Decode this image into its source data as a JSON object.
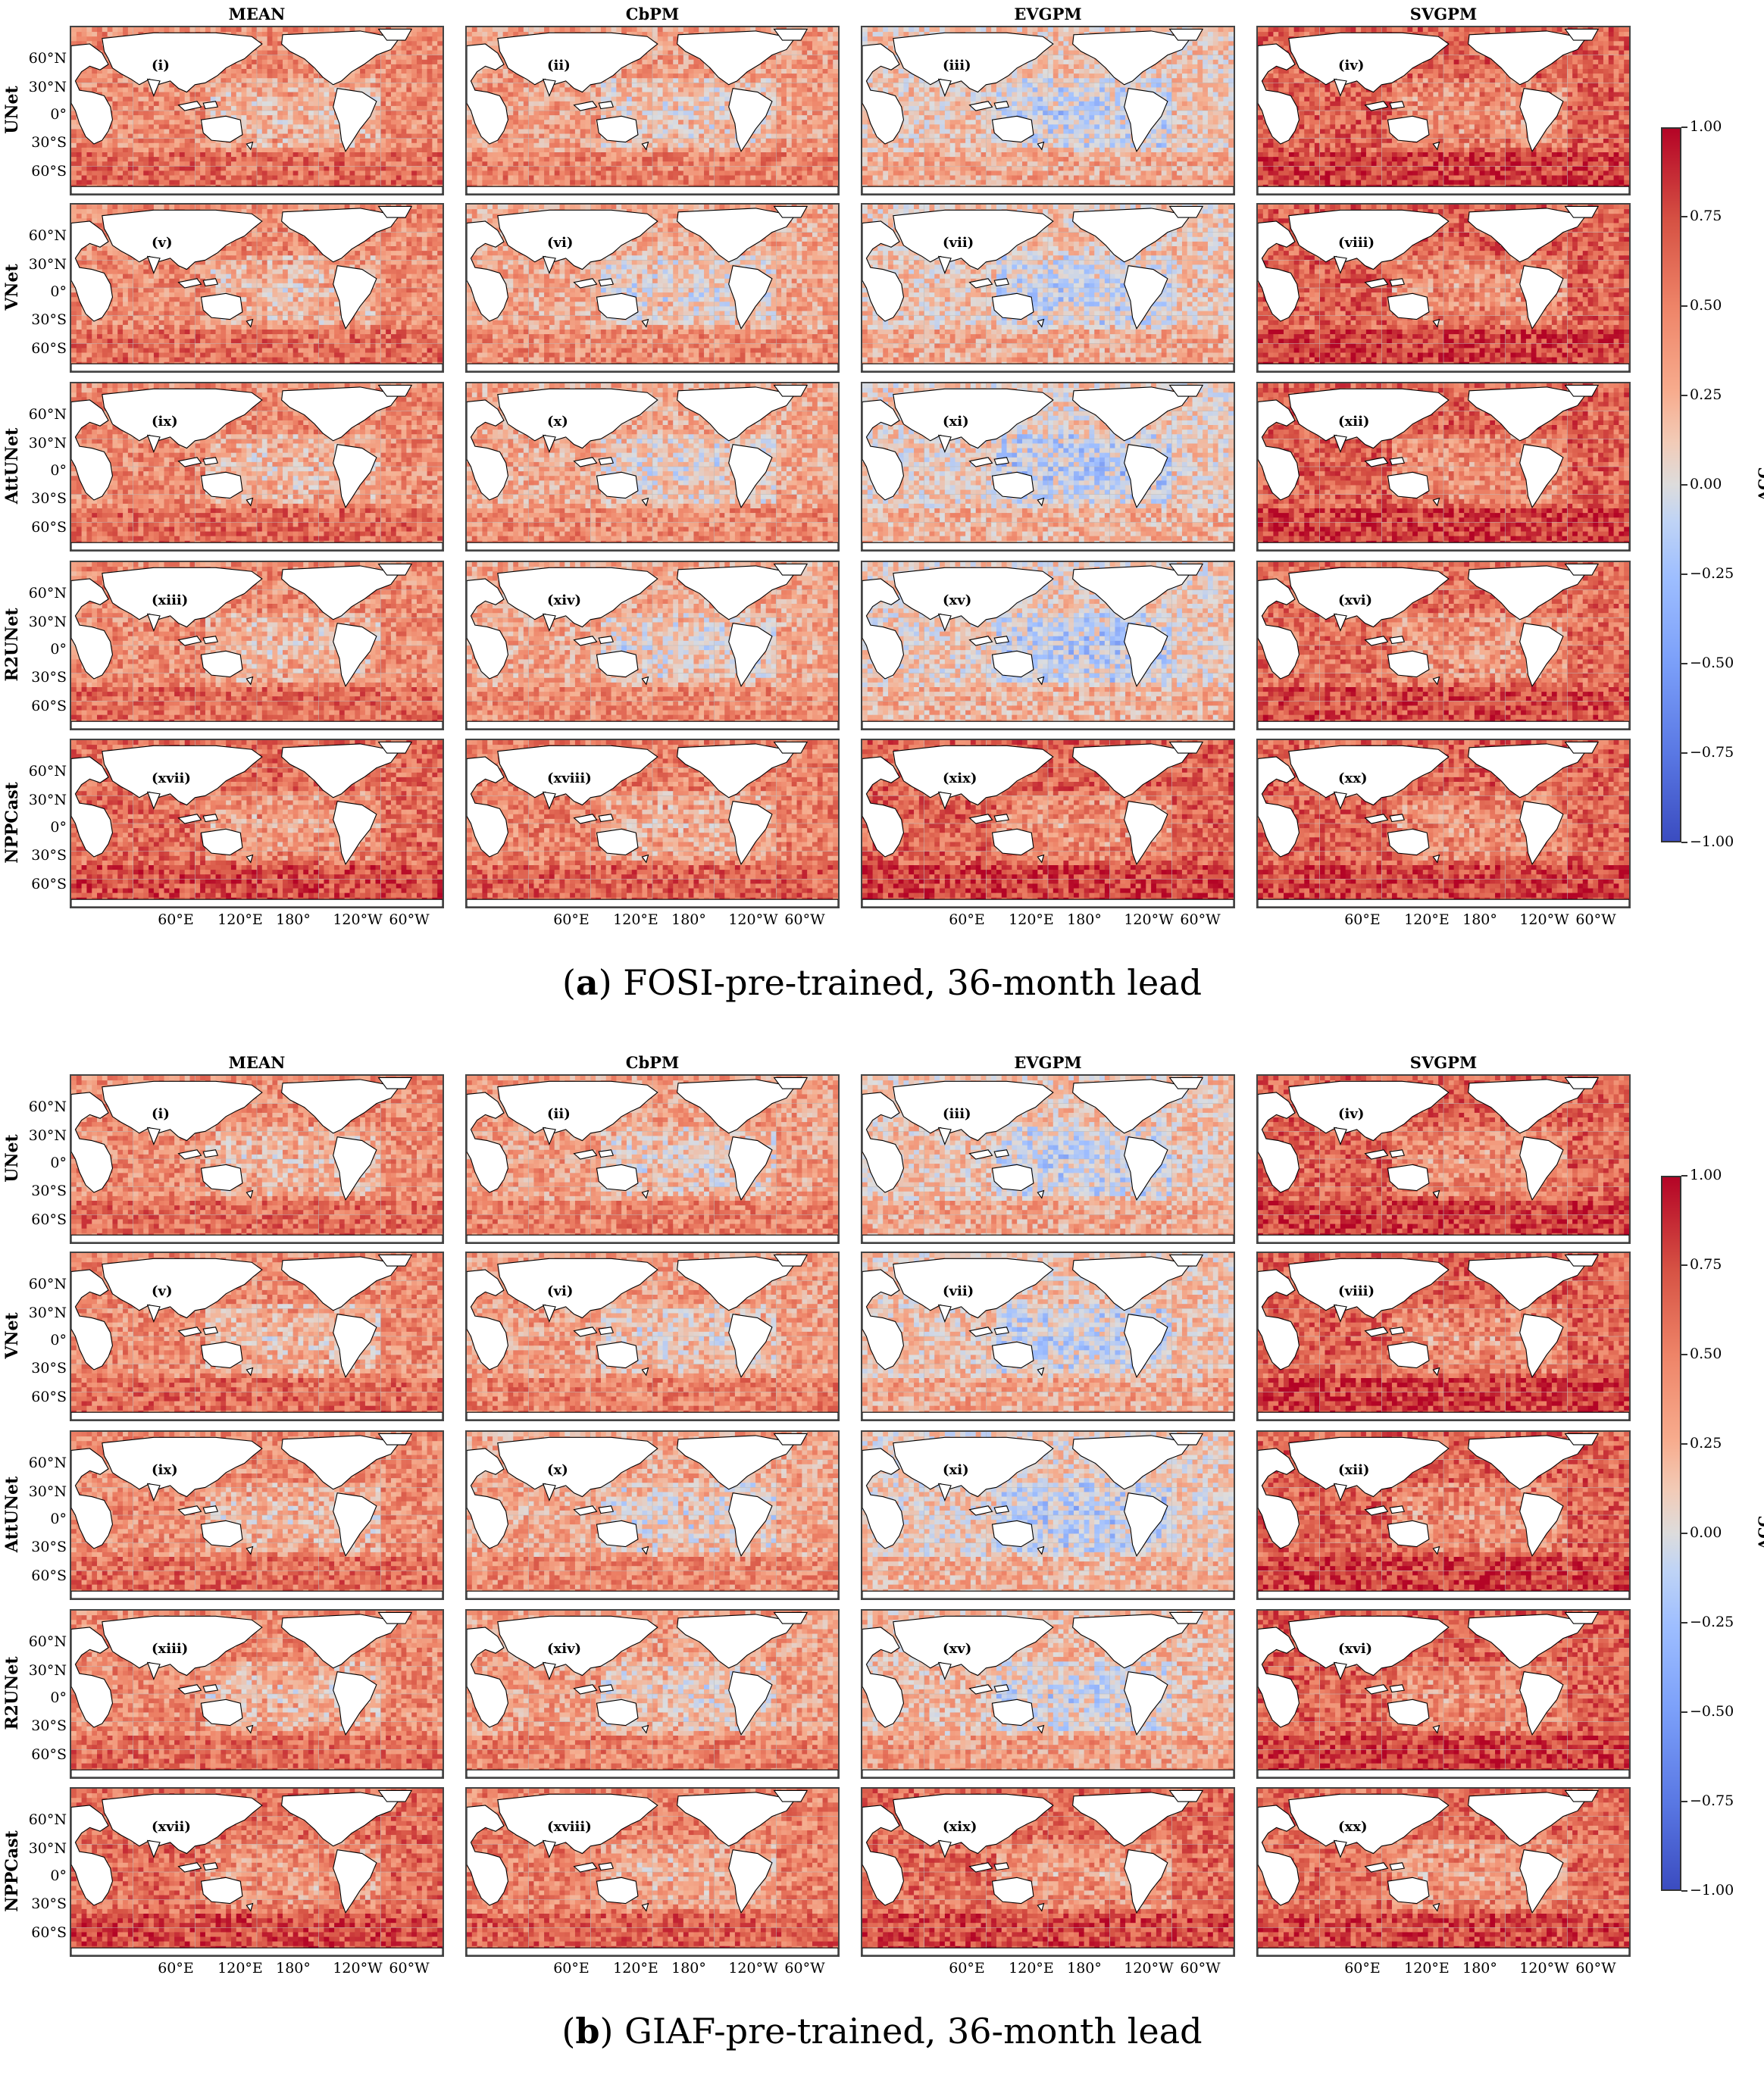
{
  "chart_data": [
    {
      "type": "heatmap",
      "caption_letter": "a",
      "caption_text": "FOSI-pre-trained, 36-month lead",
      "columns": [
        "MEAN",
        "CbPM",
        "EVGPM",
        "SVGPM"
      ],
      "rows": [
        "UNet",
        "VNet",
        "AttUNet",
        "R2UNet",
        "NPPCast"
      ],
      "panel_labels": [
        "(i)",
        "(ii)",
        "(iii)",
        "(iv)",
        "(v)",
        "(vi)",
        "(vii)",
        "(viii)",
        "(ix)",
        "(x)",
        "(xi)",
        "(xii)",
        "(xiii)",
        "(xiv)",
        "(xv)",
        "(xvi)",
        "(xvii)",
        "(xviii)",
        "(xix)",
        "(xx)"
      ],
      "lat_ticks": [
        "60°N",
        "30°N",
        "0°",
        "30°S",
        "60°S"
      ],
      "lon_ticks": [
        "60°E",
        "120°E",
        "180°",
        "120°W",
        "60°W"
      ],
      "colorbar": {
        "label": "ACC",
        "range": [
          -1.0,
          1.0
        ],
        "ticks": [
          "1.00",
          "0.75",
          "0.50",
          "0.25",
          "0.00",
          "−0.25",
          "−0.50",
          "−0.75",
          "−1.00"
        ],
        "colormap": "coolwarm"
      },
      "approx_mean_acc": [
        [
          0.45,
          0.35,
          0.15,
          0.65
        ],
        [
          0.45,
          0.3,
          0.15,
          0.65
        ],
        [
          0.45,
          0.3,
          0.1,
          0.65
        ],
        [
          0.45,
          0.3,
          0.1,
          0.6
        ],
        [
          0.6,
          0.5,
          0.65,
          0.65
        ]
      ]
    },
    {
      "type": "heatmap",
      "caption_letter": "b",
      "caption_text": "GIAF-pre-trained, 36-month lead",
      "columns": [
        "MEAN",
        "CbPM",
        "EVGPM",
        "SVGPM"
      ],
      "rows": [
        "UNet",
        "VNet",
        "AttUNet",
        "R2UNet",
        "NPPCast"
      ],
      "panel_labels": [
        "(i)",
        "(ii)",
        "(iii)",
        "(iv)",
        "(v)",
        "(vi)",
        "(vii)",
        "(viii)",
        "(ix)",
        "(x)",
        "(xi)",
        "(xii)",
        "(xiii)",
        "(xiv)",
        "(xv)",
        "(xvi)",
        "(xvii)",
        "(xviii)",
        "(xix)",
        "(xx)"
      ],
      "lat_ticks": [
        "60°N",
        "30°N",
        "0°",
        "30°S",
        "60°S"
      ],
      "lon_ticks": [
        "60°E",
        "120°E",
        "180°",
        "120°W",
        "60°W"
      ],
      "colorbar": {
        "label": "ACC",
        "range": [
          -1.0,
          1.0
        ],
        "ticks": [
          "1.00",
          "0.75",
          "0.50",
          "0.25",
          "0.00",
          "−0.25",
          "−0.50",
          "−0.75",
          "−1.00"
        ],
        "colormap": "coolwarm"
      },
      "approx_mean_acc": [
        [
          0.45,
          0.35,
          0.15,
          0.65
        ],
        [
          0.45,
          0.35,
          0.15,
          0.65
        ],
        [
          0.45,
          0.3,
          0.1,
          0.65
        ],
        [
          0.45,
          0.35,
          0.2,
          0.65
        ],
        [
          0.6,
          0.5,
          0.6,
          0.6
        ]
      ]
    }
  ]
}
